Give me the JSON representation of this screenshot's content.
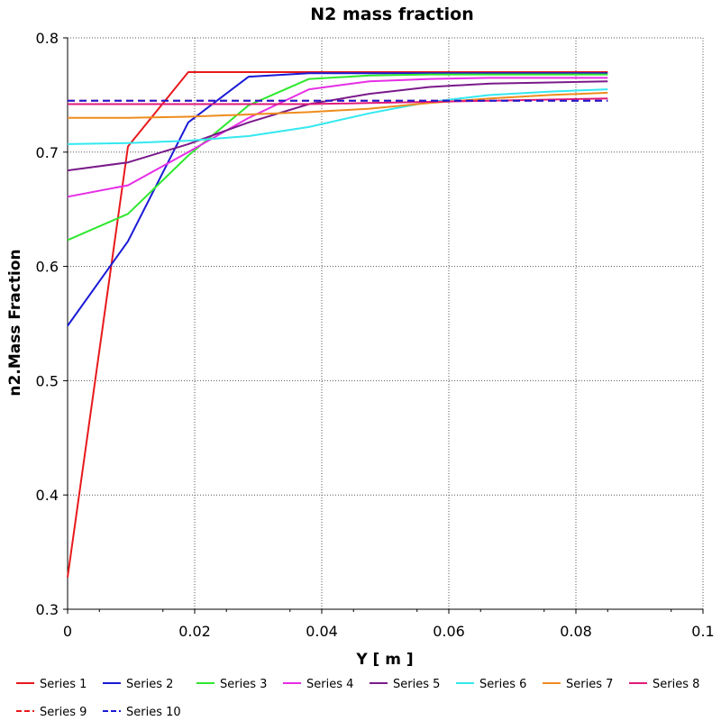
{
  "chart_data": {
    "type": "line",
    "title": "N2 mass fraction",
    "xlabel": "Y [ m ]",
    "ylabel": "n2.Mass Fraction",
    "xlim": [
      0,
      0.1
    ],
    "ylim": [
      0.3,
      0.8
    ],
    "xticks": [
      0,
      0.02,
      0.04,
      0.06,
      0.08,
      0.1
    ],
    "xtick_labels": [
      "0",
      "0.02",
      "0.04",
      "0.06",
      "0.08",
      "0.1"
    ],
    "yticks": [
      0.3,
      0.4,
      0.5,
      0.6,
      0.7,
      0.8
    ],
    "ytick_labels": [
      "0.3",
      "0.4",
      "0.5",
      "0.6",
      "0.7",
      "0.8"
    ],
    "grid": true,
    "legend_position": "bottom",
    "series": [
      {
        "name": "Series 1",
        "color": "#e8191c",
        "dash": false,
        "x": [
          0,
          0.0095,
          0.019,
          0.0285,
          0.038,
          0.0475,
          0.057,
          0.0665,
          0.076,
          0.085
        ],
        "y": [
          0.328,
          0.705,
          0.77,
          0.77,
          0.77,
          0.77,
          0.77,
          0.77,
          0.77,
          0.77
        ]
      },
      {
        "name": "Series 2",
        "color": "#1a1ad6",
        "dash": false,
        "x": [
          0,
          0.0095,
          0.019,
          0.0285,
          0.038,
          0.0475,
          0.057,
          0.0665,
          0.076,
          0.085
        ],
        "y": [
          0.548,
          0.622,
          0.726,
          0.766,
          0.769,
          0.769,
          0.769,
          0.769,
          0.769,
          0.769
        ]
      },
      {
        "name": "Series 3",
        "color": "#2ee82e",
        "dash": false,
        "x": [
          0,
          0.0095,
          0.019,
          0.0285,
          0.038,
          0.0475,
          0.057,
          0.0665,
          0.076,
          0.085
        ],
        "y": [
          0.623,
          0.646,
          0.697,
          0.741,
          0.764,
          0.767,
          0.768,
          0.768,
          0.768,
          0.768
        ]
      },
      {
        "name": "Series 4",
        "color": "#e62ee6",
        "dash": false,
        "x": [
          0,
          0.0095,
          0.019,
          0.0285,
          0.038,
          0.0475,
          0.057,
          0.0665,
          0.076,
          0.085
        ],
        "y": [
          0.661,
          0.671,
          0.7,
          0.73,
          0.755,
          0.762,
          0.764,
          0.765,
          0.765,
          0.765
        ]
      },
      {
        "name": "Series 5",
        "color": "#7a1a8a",
        "dash": false,
        "x": [
          0,
          0.0095,
          0.019,
          0.0285,
          0.038,
          0.0475,
          0.057,
          0.0665,
          0.076,
          0.085
        ],
        "y": [
          0.684,
          0.691,
          0.707,
          0.726,
          0.742,
          0.751,
          0.757,
          0.76,
          0.761,
          0.762
        ]
      },
      {
        "name": "Series 6",
        "color": "#33e8f0",
        "dash": false,
        "x": [
          0,
          0.0095,
          0.019,
          0.0285,
          0.038,
          0.0475,
          0.057,
          0.0665,
          0.076,
          0.085
        ],
        "y": [
          0.707,
          0.708,
          0.71,
          0.714,
          0.722,
          0.734,
          0.744,
          0.75,
          0.753,
          0.755
        ]
      },
      {
        "name": "Series 7",
        "color": "#ee8c1e",
        "dash": false,
        "x": [
          0,
          0.0095,
          0.019,
          0.0285,
          0.038,
          0.0475,
          0.057,
          0.0665,
          0.076,
          0.085
        ],
        "y": [
          0.73,
          0.73,
          0.731,
          0.733,
          0.735,
          0.738,
          0.743,
          0.747,
          0.75,
          0.752
        ]
      },
      {
        "name": "Series 8",
        "color": "#e01a78",
        "dash": false,
        "x": [
          0,
          0.0095,
          0.019,
          0.0285,
          0.038,
          0.0475,
          0.057,
          0.0665,
          0.076,
          0.085
        ],
        "y": [
          0.742,
          0.742,
          0.742,
          0.742,
          0.742,
          0.743,
          0.744,
          0.745,
          0.746,
          0.747
        ]
      },
      {
        "name": "Series 9",
        "color": "#e8191c",
        "dash": true,
        "x": [
          0,
          0.085
        ],
        "y": [
          0.745,
          0.745
        ]
      },
      {
        "name": "Series 10",
        "color": "#1a1ad6",
        "dash": true,
        "x": [
          0,
          0.085
        ],
        "y": [
          0.745,
          0.745
        ]
      }
    ]
  }
}
